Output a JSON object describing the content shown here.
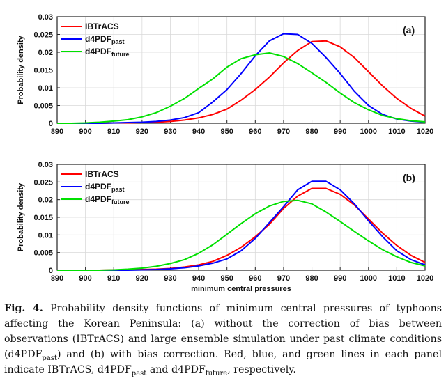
{
  "chart_data": [
    {
      "type": "line",
      "panel_label": "(a)",
      "ylabel": "Probability density",
      "xlabel": "",
      "xlim": [
        890,
        1020
      ],
      "ylim": [
        0,
        0.03
      ],
      "xticks": [
        890,
        900,
        910,
        920,
        930,
        940,
        950,
        960,
        970,
        980,
        990,
        1000,
        1010,
        1020
      ],
      "yticks": [
        0,
        0.005,
        0.01,
        0.015,
        0.02,
        0.025,
        0.03
      ],
      "ytick_labels": [
        "0",
        "0.005",
        "0.01",
        "0.015",
        "0.02",
        "0.025",
        "0.03"
      ],
      "grid": true,
      "legend_position": "top-left",
      "x": [
        890,
        895,
        900,
        905,
        910,
        915,
        920,
        925,
        930,
        935,
        940,
        945,
        950,
        955,
        960,
        965,
        970,
        975,
        980,
        985,
        990,
        995,
        1000,
        1005,
        1010,
        1015,
        1020
      ],
      "series": [
        {
          "name": "IBTrACS",
          "name_base": "IBTrACS",
          "name_sub": "",
          "color": "#ff0000",
          "values": [
            0,
            0,
            0,
            0,
            0.0001,
            0.0001,
            0.0002,
            0.0003,
            0.0005,
            0.0009,
            0.0015,
            0.0025,
            0.004,
            0.0065,
            0.0095,
            0.013,
            0.017,
            0.0205,
            0.023,
            0.0232,
            0.0215,
            0.0185,
            0.0145,
            0.0105,
            0.007,
            0.0042,
            0.002
          ]
        },
        {
          "name": "d4PDFpast",
          "name_base": "d4PDF",
          "name_sub": "past",
          "color": "#0000ff",
          "values": [
            0,
            0,
            0,
            0,
            0.0001,
            0.0002,
            0.0003,
            0.0005,
            0.0009,
            0.0016,
            0.003,
            0.006,
            0.0095,
            0.014,
            0.019,
            0.0232,
            0.0252,
            0.025,
            0.0225,
            0.0185,
            0.014,
            0.009,
            0.005,
            0.0025,
            0.0012,
            0.0006,
            0.0003
          ]
        },
        {
          "name": "d4PDFfuture",
          "name_base": "d4PDF",
          "name_sub": "future",
          "color": "#00e000",
          "values": [
            0,
            0,
            0.0001,
            0.0003,
            0.0006,
            0.001,
            0.0018,
            0.003,
            0.0048,
            0.007,
            0.0098,
            0.0125,
            0.0158,
            0.0182,
            0.0193,
            0.0198,
            0.0188,
            0.0168,
            0.0142,
            0.0115,
            0.0085,
            0.0058,
            0.0038,
            0.0022,
            0.0013,
            0.0007,
            0.0004
          ]
        }
      ]
    },
    {
      "type": "line",
      "panel_label": "(b)",
      "ylabel": "Probability density",
      "xlabel": "minimum central pressures",
      "xlim": [
        890,
        1020
      ],
      "ylim": [
        0,
        0.03
      ],
      "xticks": [
        890,
        900,
        910,
        920,
        930,
        940,
        950,
        960,
        970,
        980,
        990,
        1000,
        1010,
        1020
      ],
      "yticks": [
        0,
        0.005,
        0.01,
        0.015,
        0.02,
        0.025,
        0.03
      ],
      "ytick_labels": [
        "0",
        "0.005",
        "0.01",
        "0.015",
        "0.02",
        "0.025",
        "0.03"
      ],
      "grid": true,
      "legend_position": "top-left",
      "x": [
        890,
        895,
        900,
        905,
        910,
        915,
        920,
        925,
        930,
        935,
        940,
        945,
        950,
        955,
        960,
        965,
        970,
        975,
        980,
        985,
        990,
        995,
        1000,
        1005,
        1010,
        1015,
        1020
      ],
      "series": [
        {
          "name": "IBTrACS",
          "name_base": "IBTrACS",
          "name_sub": "",
          "color": "#ff0000",
          "values": [
            0,
            0,
            0,
            0,
            0.0001,
            0.0001,
            0.0002,
            0.0003,
            0.0005,
            0.0009,
            0.0015,
            0.0025,
            0.0042,
            0.0065,
            0.0095,
            0.013,
            0.0175,
            0.021,
            0.0232,
            0.0232,
            0.0215,
            0.0185,
            0.0145,
            0.0105,
            0.007,
            0.0042,
            0.0022
          ]
        },
        {
          "name": "d4PDFpast",
          "name_base": "d4PDF",
          "name_sub": "past",
          "color": "#0000ff",
          "values": [
            0,
            0,
            0,
            0,
            0,
            0,
            0.0001,
            0.0002,
            0.0004,
            0.0007,
            0.0012,
            0.002,
            0.0032,
            0.0055,
            0.009,
            0.0135,
            0.018,
            0.0228,
            0.0252,
            0.0252,
            0.0228,
            0.0188,
            0.014,
            0.0095,
            0.0055,
            0.003,
            0.0015
          ]
        },
        {
          "name": "d4PDFfuture",
          "name_base": "d4PDF",
          "name_sub": "future",
          "color": "#00e000",
          "values": [
            0,
            0,
            0,
            0,
            0.0001,
            0.0003,
            0.0006,
            0.0011,
            0.0019,
            0.003,
            0.0048,
            0.0072,
            0.0102,
            0.0132,
            0.016,
            0.0182,
            0.0195,
            0.0198,
            0.0188,
            0.0165,
            0.0138,
            0.011,
            0.0083,
            0.0058,
            0.0038,
            0.0022,
            0.0012
          ]
        }
      ]
    }
  ],
  "caption": {
    "label": "Fig. 4.",
    "text_1": " Probability density functions of minimum central pressures of typhoons affecting the Korean Peninsula: (a) without the correction of bias between observations (IBTrACS) and large ensemble simulation under past climate conditions (d4PDF",
    "sub_1": "past",
    "text_2": ") and (b) with bias correction. Red, blue, and green lines in each panel indicate IBTrACS, d4PDF",
    "sub_2": "past",
    "text_3": " and d4PDF",
    "sub_3": "future",
    "text_4": ", respectively."
  }
}
